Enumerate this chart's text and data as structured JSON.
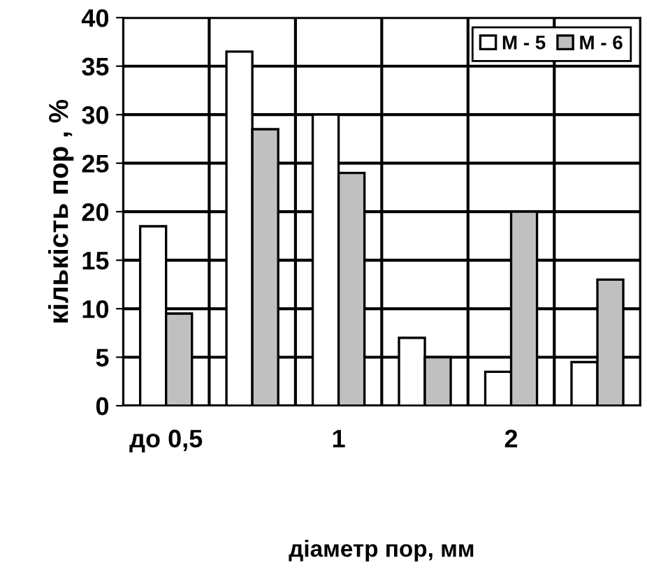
{
  "chart_data": {
    "type": "bar",
    "xlabel": "діаметр пор, мм",
    "ylabel": "кількість пор , %",
    "categories": [
      "до 0,5",
      null,
      "1",
      null,
      "2",
      null
    ],
    "series": [
      {
        "name": "М - 5",
        "color": "#ffffff",
        "values": [
          18.5,
          36.5,
          30,
          7,
          3.5,
          4.5
        ]
      },
      {
        "name": "М - 6",
        "color": "#c0c0c0",
        "values": [
          9.5,
          28.5,
          24,
          5,
          20,
          13
        ]
      }
    ],
    "ylim": [
      0,
      40
    ],
    "yticks": [
      0,
      5,
      10,
      15,
      20,
      25,
      30,
      35,
      40
    ],
    "grid": true,
    "legend": "top right"
  }
}
